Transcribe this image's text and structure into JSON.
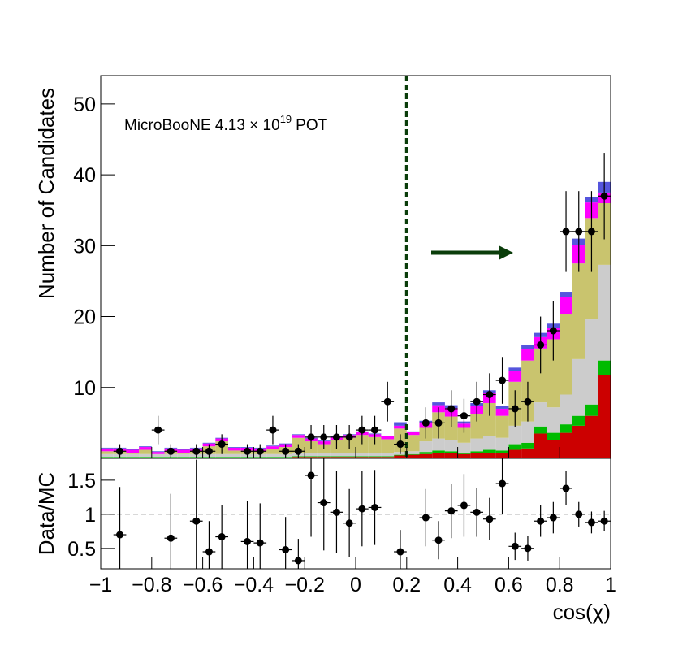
{
  "chart_data": [
    {
      "type": "histogram",
      "ylabel": "Number of Candidates",
      "annotation": "MicroBooNE 4.13 × 10",
      "annotation_sup": "19",
      "annotation_tail": "POT",
      "bins": [
        -1,
        -0.95,
        -0.9,
        -0.85,
        -0.8,
        -0.75,
        -0.7,
        -0.65,
        -0.6,
        -0.55,
        -0.5,
        -0.45,
        -0.4,
        -0.35,
        -0.3,
        -0.25,
        -0.2,
        -0.15,
        -0.1,
        -0.05,
        0,
        0.05,
        0.1,
        0.15,
        0.2,
        0.25,
        0.3,
        0.35,
        0.4,
        0.45,
        0.5,
        0.55,
        0.6,
        0.65,
        0.7,
        0.75,
        0.8,
        0.85,
        0.9,
        0.95,
        1
      ],
      "ylim": [
        0,
        54
      ],
      "yticks": [
        10,
        20,
        30,
        40,
        50
      ],
      "cut": 0.2,
      "series": [
        {
          "color": "#cc0000",
          "values": [
            0.1,
            0.1,
            0.1,
            0.1,
            0.1,
            0.1,
            0.1,
            0.1,
            0.1,
            0.1,
            0.1,
            0.1,
            0.1,
            0.1,
            0.1,
            0.2,
            0.2,
            0.2,
            0.2,
            0.2,
            0.2,
            0.2,
            0.2,
            0.4,
            0.5,
            0.6,
            0.8,
            0.7,
            0.6,
            0.7,
            0.8,
            0.8,
            1.2,
            1.4,
            3.5,
            2.6,
            3.6,
            4.6,
            6,
            11.8
          ]
        },
        {
          "color": "#00bb00",
          "values": [
            0.1,
            0.1,
            0.1,
            0.1,
            0.1,
            0.1,
            0.1,
            0.1,
            0.1,
            0.1,
            0.1,
            0.1,
            0.1,
            0.1,
            0.1,
            0.1,
            0.1,
            0.1,
            0.1,
            0.1,
            0.1,
            0.1,
            0.1,
            0.1,
            0.1,
            0.3,
            0.3,
            0.3,
            0.2,
            0.3,
            0.4,
            0.3,
            0.8,
            0.8,
            1,
            1,
            1.2,
            1.4,
            1.6,
            2
          ]
        },
        {
          "color": "#cccccc",
          "values": [
            0.4,
            0.4,
            0.4,
            0.4,
            0.4,
            0.4,
            0.4,
            0.4,
            0.4,
            0.4,
            0.4,
            0.4,
            0.4,
            0.4,
            0.4,
            0.4,
            0.4,
            0.4,
            0.4,
            0.4,
            0.4,
            0.4,
            0.4,
            0.4,
            0.4,
            1.5,
            1.7,
            1.6,
            1.4,
            1.8,
            2,
            1.8,
            2.6,
            3,
            3.4,
            3.6,
            4.2,
            8,
            12,
            13.5
          ]
        },
        {
          "color": "#c9c46e",
          "values": [
            0.4,
            0.4,
            0.2,
            0.6,
            0,
            0.4,
            0.2,
            0.4,
            1.1,
            1.8,
            0.5,
            0.5,
            0.4,
            0.7,
            1,
            2.2,
            1.7,
            1.3,
            1.9,
            2.2,
            2.6,
            2.3,
            2,
            3.3,
            2.3,
            1.9,
            3.7,
            3.3,
            2.1,
            3.4,
            4.6,
            3.1,
            6.2,
            8.6,
            7.6,
            9.6,
            11.4,
            13.5,
            14.3,
            8.7
          ]
        },
        {
          "color": "#ff00ff",
          "values": [
            0.4,
            0.4,
            0.4,
            0.4,
            0.3,
            0.4,
            0.4,
            0.4,
            0.4,
            0.4,
            0.4,
            0.4,
            0.4,
            0.4,
            0.4,
            0.4,
            0.4,
            0.4,
            0.4,
            0.4,
            0.4,
            0.4,
            0.4,
            0.4,
            0.4,
            0.8,
            1,
            1.2,
            0.6,
            1.2,
            1.4,
            1,
            1.5,
            1.6,
            1.6,
            1.6,
            2.4,
            2.6,
            2.2,
            1.5
          ]
        },
        {
          "color": "#5555dd",
          "values": [
            0.1,
            0.1,
            0.1,
            0.1,
            0.1,
            0.1,
            0.1,
            0.1,
            0.1,
            0.1,
            0.1,
            0.1,
            0.1,
            0.1,
            0.1,
            0.1,
            0.1,
            0.1,
            0.1,
            0.1,
            0.1,
            0.1,
            0.1,
            0.5,
            0.1,
            0.2,
            0.4,
            0.4,
            0.3,
            0.4,
            0.4,
            0.4,
            0.5,
            0.6,
            0.6,
            0.6,
            0.7,
            0.9,
            0.8,
            1.5
          ]
        }
      ],
      "data": {
        "color": "#000000",
        "values": [
          null,
          1,
          null,
          null,
          4,
          1,
          null,
          1,
          1,
          2,
          null,
          1,
          1,
          4,
          1,
          1,
          3,
          3,
          3,
          3,
          4,
          4,
          8,
          2,
          null,
          5,
          5,
          7,
          6,
          8,
          9,
          11,
          7,
          8,
          16,
          18,
          32,
          32,
          32,
          37
        ],
        "errors": [
          null,
          1,
          null,
          null,
          2,
          1,
          null,
          1,
          1,
          1.4,
          null,
          1,
          1,
          2,
          1,
          1,
          1.7,
          1.7,
          1.7,
          1.7,
          2,
          2,
          2.8,
          1.4,
          null,
          2.2,
          2.2,
          2.6,
          2.4,
          2.8,
          3,
          3.3,
          2.6,
          2.8,
          4,
          4.2,
          5.7,
          5.7,
          5.7,
          6.1
        ]
      }
    },
    {
      "type": "scatter",
      "ylabel": "Data/MC",
      "xlabel": "cos(χ)",
      "xlim": [
        -1,
        1
      ],
      "xticks": [
        {
          "value": -1,
          "label": "−1"
        },
        {
          "value": -0.8,
          "label": "−0.8"
        },
        {
          "value": -0.6,
          "label": "−0.6"
        },
        {
          "value": -0.4,
          "label": "−0.4"
        },
        {
          "value": -0.2,
          "label": "−0.2"
        },
        0,
        0.2,
        0.4,
        0.6,
        0.8,
        1
      ],
      "ylim": [
        0.2,
        1.82
      ],
      "yticks": [
        0.5,
        1,
        1.5
      ],
      "reference": 1,
      "values": [
        null,
        0.7,
        null,
        null,
        null,
        0.65,
        null,
        0.9,
        0.45,
        0.67,
        null,
        0.6,
        0.58,
        null,
        0.48,
        0.32,
        1.57,
        1.17,
        1.03,
        0.87,
        1.08,
        1.1,
        null,
        0.45,
        null,
        0.95,
        0.62,
        1.05,
        1.13,
        1.03,
        0.93,
        1.45,
        0.53,
        0.5,
        0.9,
        0.95,
        1.38,
        1,
        0.88,
        0.9
      ],
      "errors": [
        null,
        0.7,
        null,
        null,
        null,
        0.65,
        null,
        0.9,
        0.45,
        0.47,
        null,
        0.6,
        0.58,
        null,
        0.48,
        0.32,
        0.9,
        0.7,
        0.6,
        0.5,
        0.55,
        0.55,
        null,
        0.32,
        null,
        0.42,
        0.28,
        0.4,
        0.46,
        0.36,
        0.31,
        0.44,
        0.2,
        0.18,
        0.23,
        0.23,
        0.25,
        0.18,
        0.16,
        0.15
      ]
    }
  ]
}
